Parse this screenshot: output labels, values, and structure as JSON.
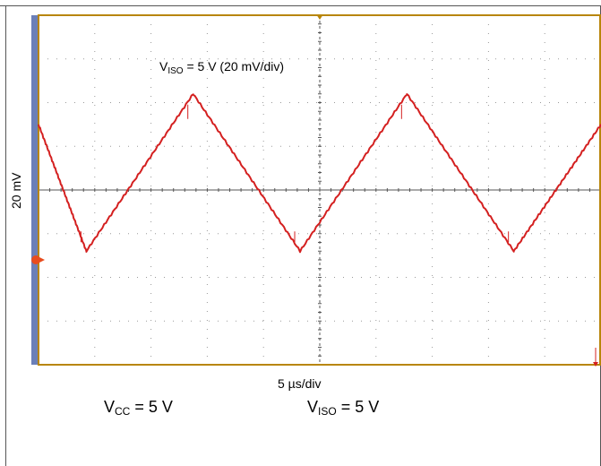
{
  "chart_data": {
    "type": "line",
    "title": "",
    "annotation": {
      "main": "V",
      "sub": "ISO",
      "rest": " = 5 V (20 mV/div)"
    },
    "xlabel": "5 µs/div",
    "ylabel": "20 mV",
    "grid": true,
    "divisions": {
      "x": 10,
      "y": 8
    },
    "xlim": [
      0,
      10
    ],
    "ylim": [
      -4,
      4
    ],
    "series": [
      {
        "color": "#d42020",
        "x": [
          0,
          0.85,
          2.75,
          4.65,
          6.55,
          8.45,
          10
        ],
        "values": [
          1.5,
          -1.4,
          2.2,
          -1.4,
          2.2,
          -1.4,
          1.5
        ]
      }
    ],
    "colors": {
      "trace": "#d42020",
      "grid_border": "#b8860b",
      "left_bar": "#6b7fb8",
      "marker": "#e84c1e"
    },
    "markers": {
      "ground_level": -1.6
    }
  },
  "conditions": {
    "vcc": {
      "main": "V",
      "sub": "CC",
      "rest": " = 5 V"
    },
    "viso": {
      "main": "V",
      "sub": "ISO",
      "rest": " = 5 V"
    }
  }
}
